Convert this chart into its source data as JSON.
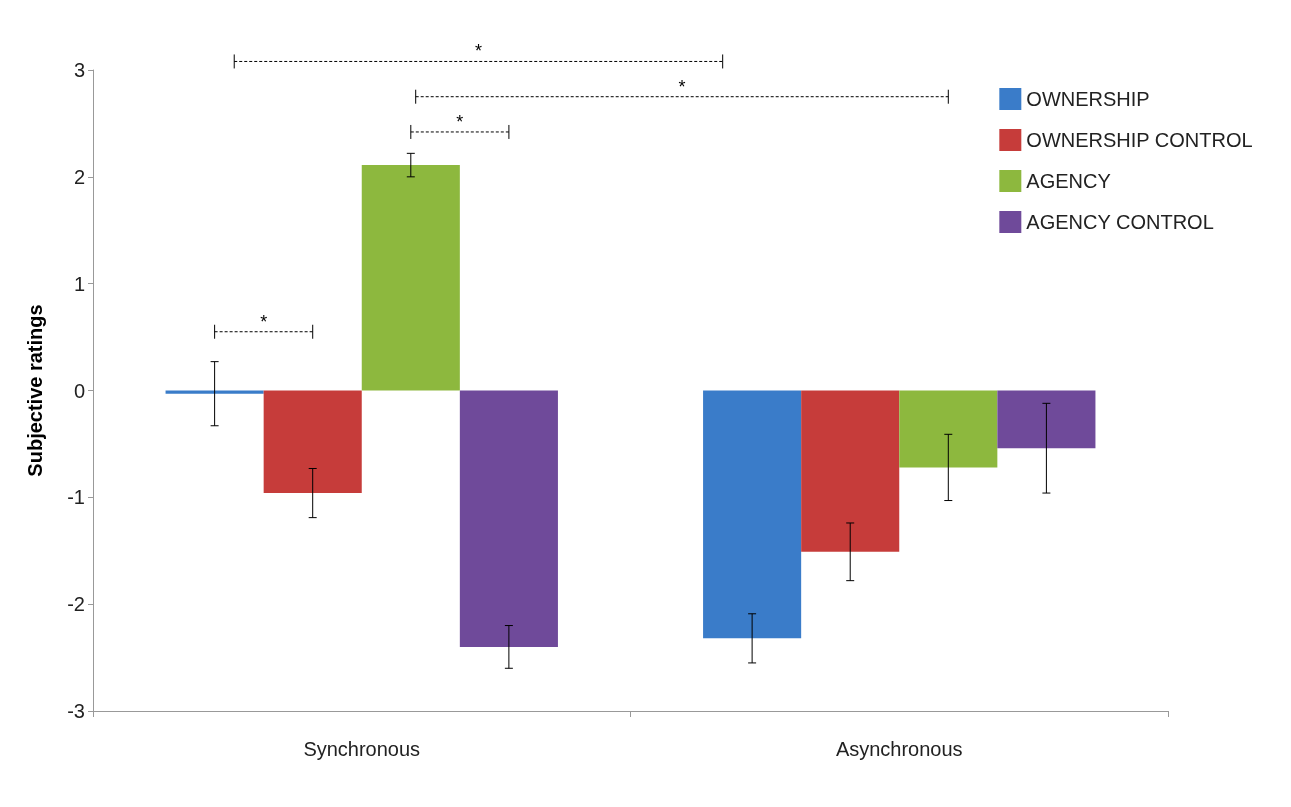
{
  "chart_data": {
    "type": "bar",
    "ylabel": "Subjective ratings",
    "categories": [
      "Synchronous",
      "Asynchronous"
    ],
    "series": [
      {
        "name": "OWNERSHIP",
        "color": "#3a7cc9",
        "values": [
          -0.03,
          -2.32
        ],
        "errors": [
          0.3,
          0.23
        ]
      },
      {
        "name": "OWNERSHIP CONTROL",
        "color": "#c63c3a",
        "values": [
          -0.96,
          -1.51
        ],
        "errors": [
          0.23,
          0.27
        ]
      },
      {
        "name": "AGENCY",
        "color": "#8db83e",
        "values": [
          2.11,
          -0.72
        ],
        "errors": [
          0.11,
          0.31
        ]
      },
      {
        "name": "AGENCY CONTROL",
        "color": "#6f4a9a",
        "values": [
          -2.4,
          -0.54
        ],
        "errors": [
          0.2,
          0.42
        ]
      }
    ],
    "ylim": [
      -3,
      3
    ],
    "yticks": [
      -3,
      -2,
      -1,
      0,
      1,
      2,
      3
    ],
    "grid": false,
    "legend": "top right",
    "annotations": [
      "*",
      "*",
      "*",
      "*"
    ]
  }
}
